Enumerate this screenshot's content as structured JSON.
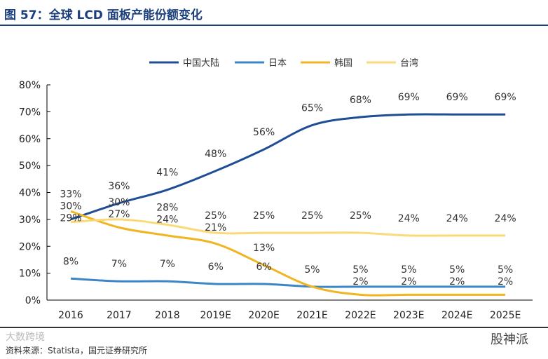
{
  "title": "图 57：全球 LCD 面板产能份额变化",
  "source": "资料来源：Statista，国元证券研究所",
  "watermarks": [
    "大数跨境",
    "股神派"
  ],
  "chart_data": {
    "type": "line",
    "title": "图 57：全球 LCD 面板产能份额变化",
    "xlabel": "",
    "ylabel": "",
    "categories": [
      "2016",
      "2017",
      "2018",
      "2019E",
      "2020E",
      "2021E",
      "2022E",
      "2023E",
      "2024E",
      "2025E"
    ],
    "ylim": [
      0,
      80
    ],
    "yticks": [
      "0%",
      "10%",
      "20%",
      "30%",
      "40%",
      "50%",
      "60%",
      "70%",
      "80%"
    ],
    "legend_position": "top",
    "grid": false,
    "series": [
      {
        "name": "中国大陆",
        "color": "#1f4e96",
        "values": [
          30,
          36,
          41,
          48,
          56,
          65,
          68,
          69,
          69,
          69
        ],
        "labels": [
          "30%",
          "36%",
          "41%",
          "48%",
          "56%",
          "65%",
          "68%",
          "69%",
          "69%",
          "69%"
        ]
      },
      {
        "name": "日本",
        "color": "#3b86c6",
        "values": [
          8,
          7,
          7,
          6,
          6,
          5,
          5,
          5,
          5,
          5
        ],
        "labels": [
          "8%",
          "7%",
          "7%",
          "6%",
          "6%",
          "5%",
          "5%",
          "5%",
          "5%",
          "5%"
        ]
      },
      {
        "name": "韩国",
        "color": "#f0b520",
        "values": [
          33,
          27,
          24,
          21,
          13,
          5,
          2,
          2,
          2,
          2
        ],
        "labels": [
          "33%",
          "27%",
          "24%",
          "21%",
          "13%",
          "",
          "2%",
          "2%",
          "2%",
          "2%"
        ]
      },
      {
        "name": "台湾",
        "color": "#f9d978",
        "values": [
          29,
          30,
          28,
          25,
          25,
          25,
          25,
          24,
          24,
          24
        ],
        "labels": [
          "29%",
          "30%",
          "28%",
          "25%",
          "25%",
          "25%",
          "25%",
          "24%",
          "24%",
          "24%"
        ]
      }
    ]
  }
}
